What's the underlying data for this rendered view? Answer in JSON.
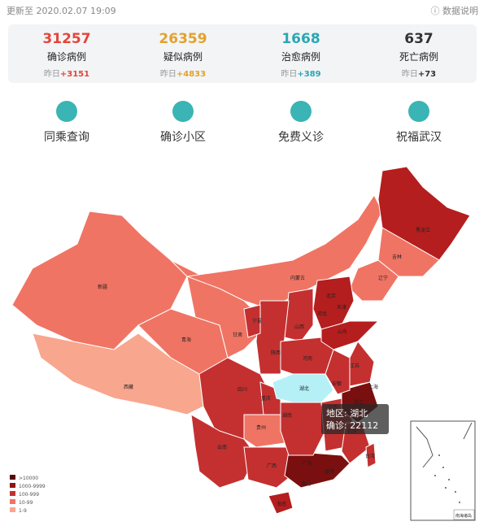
{
  "header": {
    "update_time": "更新至 2020.02.07 19:09",
    "data_note": "数据说明"
  },
  "stats": [
    {
      "value": 31257,
      "label": "确诊病例",
      "yesterday_label": "昨日",
      "yesterday_change": "+3151",
      "color": "#e2463a"
    },
    {
      "value": 26359,
      "label": "疑似病例",
      "yesterday_label": "昨日",
      "yesterday_change": "+4833",
      "color": "#e3a12c"
    },
    {
      "value": 1668,
      "label": "治愈病例",
      "yesterday_label": "昨日",
      "yesterday_change": "+389",
      "color": "#2aa7b3"
    },
    {
      "value": 637,
      "label": "死亡病例",
      "yesterday_label": "昨日",
      "yesterday_change": "+73",
      "color": "#333333"
    }
  ],
  "menu": [
    "同乘查询",
    "确诊小区",
    "免费义诊",
    "祝福武汉"
  ],
  "map": {
    "regions": [
      {
        "name": "新疆",
        "color": "#f07464"
      },
      {
        "name": "西藏",
        "color": "#f8a68e"
      },
      {
        "name": "青海",
        "color": "#f07464"
      },
      {
        "name": "甘肃",
        "color": "#f07464"
      },
      {
        "name": "内蒙古",
        "color": "#f07464"
      },
      {
        "name": "黑龙江",
        "color": "#b51e1e"
      },
      {
        "name": "吉林",
        "color": "#f07464"
      },
      {
        "name": "辽宁",
        "color": "#f07464"
      },
      {
        "name": "北京",
        "color": "#b51e1e"
      },
      {
        "name": "天津",
        "color": "#c43030"
      },
      {
        "name": "河北",
        "color": "#b51e1e"
      },
      {
        "name": "山西",
        "color": "#c43030"
      },
      {
        "name": "陕西",
        "color": "#c43030"
      },
      {
        "name": "宁夏",
        "color": "#c43030"
      },
      {
        "name": "四川",
        "color": "#c43030"
      },
      {
        "name": "重庆",
        "color": "#c43030"
      },
      {
        "name": "云南",
        "color": "#c43030"
      },
      {
        "name": "贵州",
        "color": "#f07464"
      },
      {
        "name": "广西",
        "color": "#c43030"
      },
      {
        "name": "广东",
        "color": "#7a0f0f"
      },
      {
        "name": "湖南",
        "color": "#c43030"
      },
      {
        "name": "江西",
        "color": "#c43030"
      },
      {
        "name": "福建",
        "color": "#c43030"
      },
      {
        "name": "浙江",
        "color": "#7a0f0f"
      },
      {
        "name": "安徽",
        "color": "#c43030"
      },
      {
        "name": "河南",
        "color": "#c43030"
      },
      {
        "name": "山东",
        "color": "#b51e1e"
      },
      {
        "name": "江苏",
        "color": "#c43030"
      },
      {
        "name": "上海",
        "color": "#c43030"
      },
      {
        "name": "湖北",
        "color": "#b6f0f7"
      },
      {
        "name": "海南",
        "color": "#b51e1e"
      },
      {
        "name": "香港",
        "color": "#c43030"
      },
      {
        "name": "澳门",
        "color": "#c43030"
      },
      {
        "name": "台湾",
        "color": "#c43030"
      }
    ],
    "tooltip": {
      "region": "地区: 湖北",
      "confirmed": "确诊: 22112"
    },
    "legend": [
      {
        "label": ">10000",
        "color": "#5a0a0a"
      },
      {
        "label": "1000-9999",
        "color": "#8e1414"
      },
      {
        "label": "100-999",
        "color": "#c43030"
      },
      {
        "label": "10-99",
        "color": "#f07464"
      },
      {
        "label": "1-9",
        "color": "#f8a68e"
      }
    ],
    "inset_label": "南海诸岛"
  }
}
